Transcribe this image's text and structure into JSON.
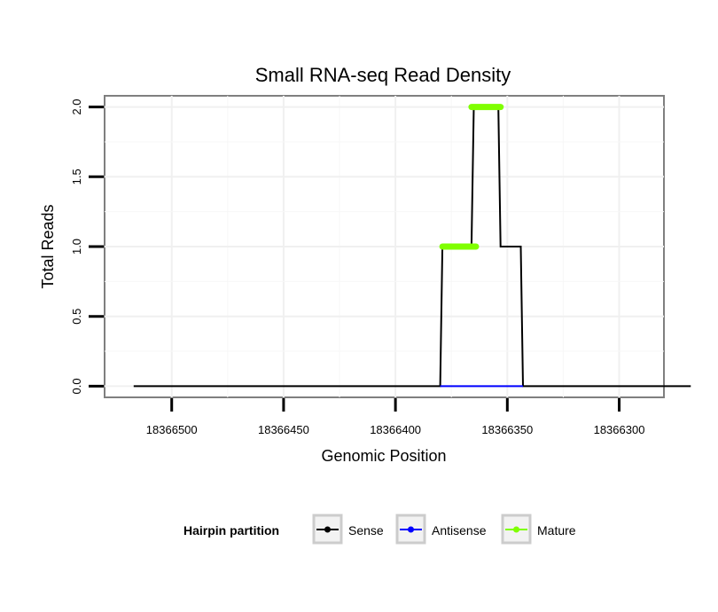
{
  "chart_data": {
    "type": "line",
    "title": "Small RNA-seq Read Density",
    "xlabel": "Genomic Position",
    "ylabel": "Total Reads",
    "x_reversed": true,
    "xlim": [
      18366530,
      18366280
    ],
    "ylim": [
      -0.08,
      2.08
    ],
    "x_ticks": [
      18366500,
      18366450,
      18366400,
      18366350,
      18366300
    ],
    "x_tick_labels": [
      "18366500",
      "18366450",
      "18366400",
      "18366350",
      "18366300"
    ],
    "y_ticks": [
      0,
      0.5,
      1,
      1.5,
      2
    ],
    "y_tick_labels": [
      "0.0",
      "0.5",
      "1.0",
      "1.5",
      "2.0"
    ],
    "grid": true,
    "series": [
      {
        "name": "Sense",
        "color": "#000000",
        "points": [
          [
            18366517,
            0
          ],
          [
            18366380,
            0
          ],
          [
            18366379,
            1
          ],
          [
            18366366,
            1
          ],
          [
            18366365,
            2
          ],
          [
            18366354,
            2
          ],
          [
            18366353,
            1
          ],
          [
            18366344,
            1
          ],
          [
            18366343,
            0
          ],
          [
            18366268,
            0
          ]
        ]
      },
      {
        "name": "Antisense",
        "color": "#0000ff",
        "points": [
          [
            18366380,
            0
          ],
          [
            18366343,
            0
          ]
        ]
      },
      {
        "name": "Mature",
        "color": "#7fff00",
        "segments": [
          {
            "x_start": 18366379,
            "x_end": 18366364,
            "y": 1
          },
          {
            "x_start": 18366366,
            "x_end": 18366353,
            "y": 2
          }
        ]
      }
    ],
    "legend": {
      "title": "Hairpin partition",
      "position": "bottom",
      "entries": [
        "Sense",
        "Antisense",
        "Mature"
      ]
    }
  }
}
